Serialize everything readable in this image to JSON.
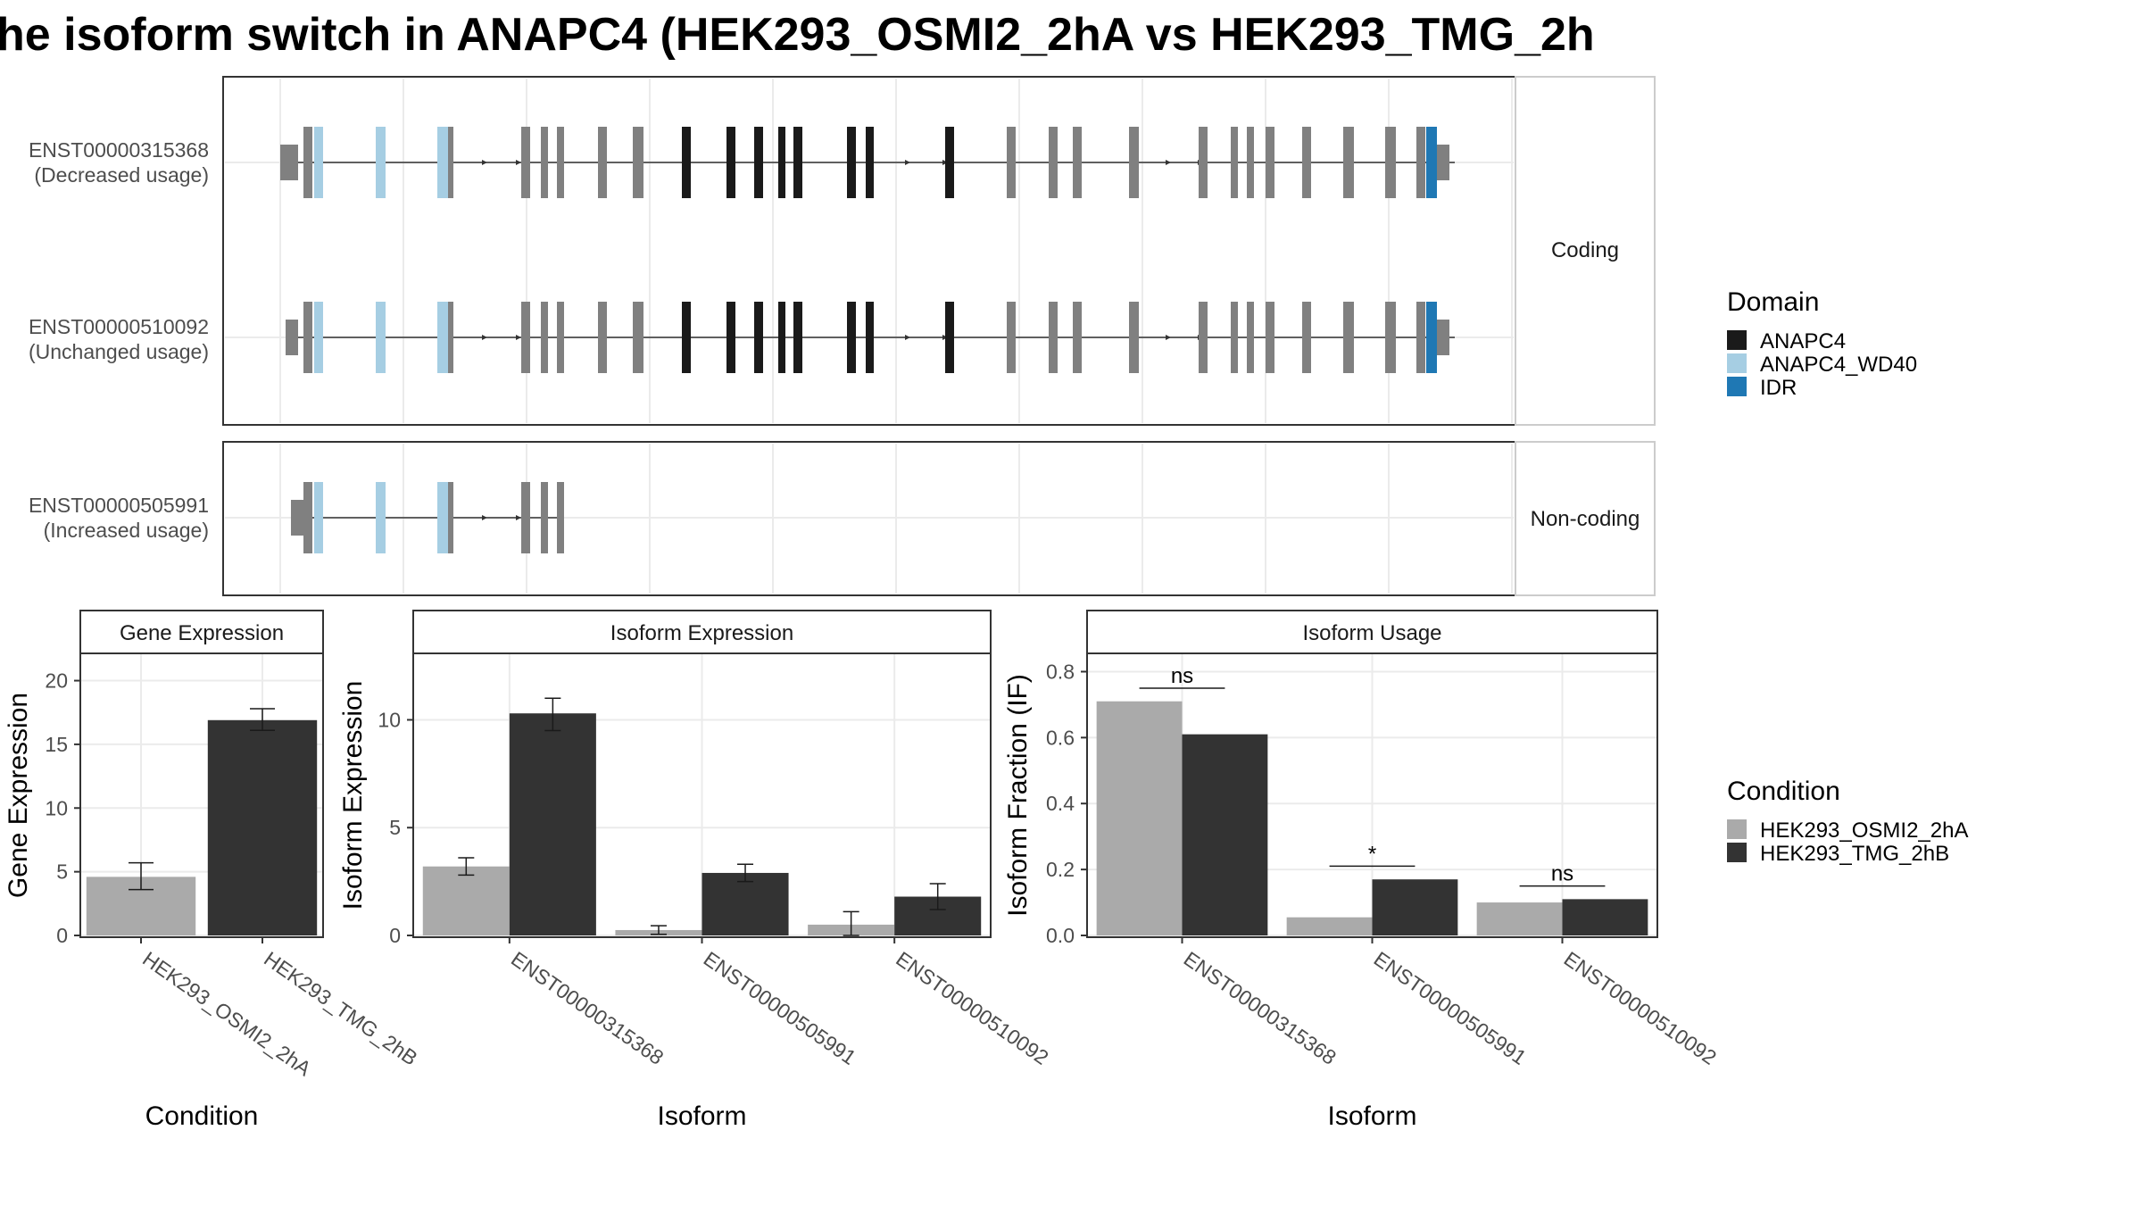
{
  "title": "he isoform switch in ANAPC4 (HEK293_OSMI2_2hA vs HEK293_TMG_2h",
  "colors": {
    "utr": "#808080",
    "cds_plain": "#808080",
    "ANAPC4": "#1a1a1a",
    "ANAPC4_WD40": "#a6cee3",
    "IDR": "#1f78b4",
    "cond_a": "#aaaaaa",
    "cond_b": "#333333",
    "grid": "#ebebeb",
    "panel_border": "#333333",
    "strip_border": "#cccccc"
  },
  "structure": {
    "facets": [
      {
        "label": "Coding",
        "transcripts": [
          {
            "id": "ENST00000315368",
            "usage": "(Decreased usage)"
          },
          {
            "id": "ENST00000510092",
            "usage": "(Unchanged usage)"
          }
        ]
      },
      {
        "label": "Non-coding",
        "transcripts": [
          {
            "id": "ENST00000505991",
            "usage": "(Increased usage)"
          }
        ]
      }
    ]
  },
  "legends": {
    "domain": {
      "title": "Domain",
      "items": [
        {
          "label": "ANAPC4",
          "color_key": "ANAPC4"
        },
        {
          "label": "ANAPC4_WD40",
          "color_key": "ANAPC4_WD40"
        },
        {
          "label": "IDR",
          "color_key": "IDR"
        }
      ]
    },
    "condition": {
      "title": "Condition",
      "items": [
        {
          "label": "HEK293_OSMI2_2hA",
          "color_key": "cond_a"
        },
        {
          "label": "HEK293_TMG_2hB",
          "color_key": "cond_b"
        }
      ]
    }
  },
  "chart_data": [
    {
      "type": "bar",
      "strip": "Gene Expression",
      "xlabel": "Condition",
      "ylabel": "Gene Expression",
      "ylim": [
        0,
        22
      ],
      "yticks": [
        0,
        5,
        10,
        15,
        20
      ],
      "categories": [
        "HEK293_OSMI2_2hA",
        "HEK293_TMG_2hB"
      ],
      "values": [
        4.6,
        16.9
      ],
      "errors": [
        [
          3.6,
          5.7
        ],
        [
          16.1,
          17.8
        ]
      ]
    },
    {
      "type": "bar",
      "strip": "Isoform Expression",
      "xlabel": "Isoform",
      "ylabel": "Isoform Expression",
      "ylim": [
        0,
        13
      ],
      "yticks": [
        0,
        5,
        10
      ],
      "categories": [
        "ENST00000315368",
        "ENST00000505991",
        "ENST00000510092"
      ],
      "series": [
        {
          "name": "HEK293_OSMI2_2hA",
          "values": [
            3.2,
            0.25,
            0.5
          ],
          "errors": [
            [
              2.8,
              3.6
            ],
            [
              0.05,
              0.45
            ],
            [
              0.0,
              1.1
            ]
          ]
        },
        {
          "name": "HEK293_TMG_2hB",
          "values": [
            10.3,
            2.9,
            1.8
          ],
          "errors": [
            [
              9.5,
              11.0
            ],
            [
              2.5,
              3.3
            ],
            [
              1.2,
              2.4
            ]
          ]
        }
      ]
    },
    {
      "type": "bar",
      "strip": "Isoform Usage",
      "xlabel": "Isoform",
      "ylabel": "Isoform Fraction (IF)",
      "ylim": [
        0,
        0.85
      ],
      "yticks": [
        "0.0",
        "0.2",
        "0.4",
        "0.6",
        "0.8"
      ],
      "categories": [
        "ENST00000315368",
        "ENST00000505991",
        "ENST00000510092"
      ],
      "series": [
        {
          "name": "HEK293_OSMI2_2hA",
          "values": [
            0.71,
            0.055,
            0.1
          ]
        },
        {
          "name": "HEK293_TMG_2hB",
          "values": [
            0.61,
            0.17,
            0.11
          ]
        }
      ],
      "significance": [
        {
          "label": "ns",
          "y": 0.75
        },
        {
          "label": "*",
          "y": 0.21
        },
        {
          "label": "ns",
          "y": 0.15
        }
      ]
    }
  ]
}
